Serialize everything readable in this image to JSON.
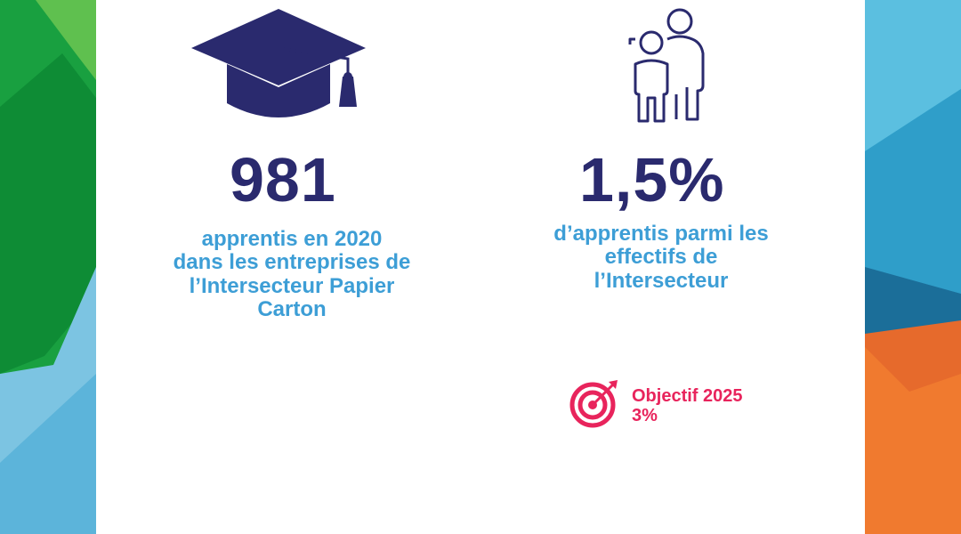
{
  "stats": [
    {
      "icon": "graduation-cap-icon",
      "value": "981",
      "lines": [
        "apprentis en 2020",
        "dans les entreprises de",
        "l’Intersecteur Papier",
        "Carton"
      ]
    },
    {
      "icon": "adult-and-child-icon",
      "value": "1,5%",
      "lines": [
        "d’apprentis parmi les",
        "effectifs de",
        "l’Intersecteur"
      ]
    }
  ],
  "objective": {
    "icon": "target-icon",
    "label": "Objectif 2025",
    "value": "3%"
  },
  "colors": {
    "navy": "#2a2a6e",
    "blue": "#3d9ed6",
    "pink": "#e8245c",
    "green": "#1a9a3c",
    "lightblue": "#5ab3d8",
    "orange": "#e8652a"
  }
}
